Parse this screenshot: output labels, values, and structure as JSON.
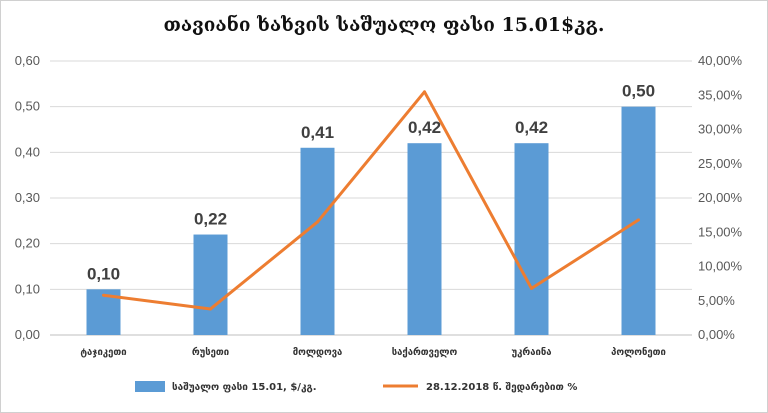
{
  "chart_data": {
    "type": "bar",
    "title": "თავიანი ხახვის საშუალო ფასი 15.01$კგ.",
    "categories": [
      "ტაჯიკეთი",
      "რუსეთი",
      "მოლდოვა",
      "საქართველო",
      "უკრაინა",
      "პოლონეთი"
    ],
    "series": [
      {
        "name": "საშუალო ფასი 15.01, $/კგ.",
        "type": "bar",
        "axis": "left",
        "color": "#5B9BD5",
        "values": [
          0.1,
          0.22,
          0.41,
          0.42,
          0.42,
          0.5
        ],
        "labels": [
          "0,10",
          "0,22",
          "0,41",
          "0,42",
          "0,42",
          "0,50"
        ]
      },
      {
        "name": "28.12.2018 წ. შედარებით %",
        "type": "line",
        "axis": "right",
        "color": "#ED7D31",
        "values": [
          5.8,
          3.8,
          16.5,
          35.5,
          6.8,
          16.8
        ]
      }
    ],
    "y_left": {
      "min": 0,
      "max": 0.6,
      "ticks": [
        0,
        0.1,
        0.2,
        0.3,
        0.4,
        0.5,
        0.6
      ],
      "tick_labels": [
        "0,00",
        "0,10",
        "0,20",
        "0,30",
        "0,40",
        "0,50",
        "0,60"
      ]
    },
    "y_right": {
      "min": 0,
      "max": 40,
      "ticks": [
        0,
        5,
        10,
        15,
        20,
        25,
        30,
        35,
        40
      ],
      "tick_labels": [
        "0,00%",
        "5,00%",
        "10,00%",
        "15,00%",
        "20,00%",
        "25,00%",
        "30,00%",
        "35,00%",
        "40,00%"
      ]
    },
    "grid": true,
    "legend_position": "bottom"
  }
}
